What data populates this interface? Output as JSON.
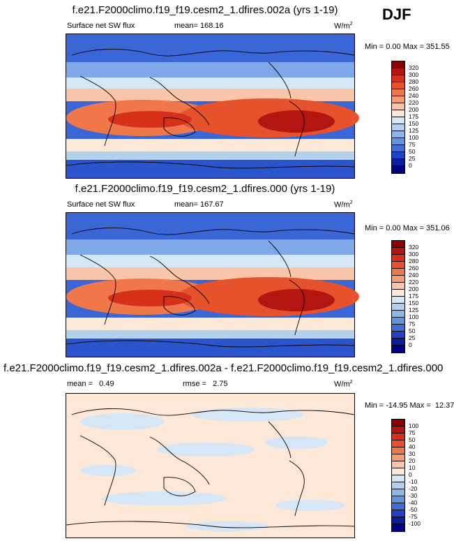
{
  "season": "DJF",
  "panels": [
    {
      "title": "f.e21.F2000climo.f19_f19.cesm2_1.dfires.002a (yrs 1-19)",
      "left_label": "Surface net SW flux",
      "center_label": "mean= 168.16",
      "units": "W/m",
      "units_sup": "2",
      "minmax": "Min =   0.00 Max = 351.55",
      "levels": [
        "320",
        "300",
        "280",
        "260",
        "240",
        "220",
        "200",
        "175",
        "150",
        "125",
        "100",
        "75",
        "50",
        "25",
        "0"
      ],
      "colors": [
        "#8b0000",
        "#b31610",
        "#d62f1a",
        "#e6522b",
        "#f0774a",
        "#f59c75",
        "#f9c5a8",
        "#fde8d8",
        "#d5e6f6",
        "#b3d1ef",
        "#8db6e6",
        "#6395da",
        "#3f6fd1",
        "#1f45c6",
        "#0a1fa0",
        "#000080"
      ],
      "map_type": "full"
    },
    {
      "title": "f.e21.F2000climo.f19_f19.cesm2_1.dfires.000 (yrs 1-19)",
      "left_label": "Surface net SW flux",
      "center_label": "mean= 167.67",
      "units": "W/m",
      "units_sup": "2",
      "minmax": "Min =   0.00 Max = 351.06",
      "levels": [
        "320",
        "300",
        "280",
        "260",
        "240",
        "220",
        "200",
        "175",
        "150",
        "125",
        "100",
        "75",
        "50",
        "25",
        "0"
      ],
      "colors": [
        "#8b0000",
        "#b31610",
        "#d62f1a",
        "#e6522b",
        "#f0774a",
        "#f59c75",
        "#f9c5a8",
        "#fde8d8",
        "#d5e6f6",
        "#b3d1ef",
        "#8db6e6",
        "#6395da",
        "#3f6fd1",
        "#1f45c6",
        "#0a1fa0",
        "#000080"
      ],
      "map_type": "full"
    },
    {
      "title": "f.e21.F2000climo.f19_f19.cesm2_1.dfires.002a - f.e21.F2000climo.f19_f19.cesm2_1.dfires.000",
      "left_label": "mean =   0.49",
      "center_label": "rmse =   2.75",
      "units": "W/m",
      "units_sup": "2",
      "minmax": "Min = -14.95 Max =  12.37",
      "levels": [
        "100",
        "75",
        "50",
        "40",
        "30",
        "20",
        "10",
        "0",
        "-10",
        "-20",
        "-30",
        "-40",
        "-50",
        "-75",
        "-100"
      ],
      "colors": [
        "#8b0000",
        "#b31610",
        "#d62f1a",
        "#e6522b",
        "#f0774a",
        "#f59c75",
        "#f9c5a8",
        "#fde8d8",
        "#d5e6f6",
        "#b3d1ef",
        "#8db6e6",
        "#6395da",
        "#3f6fd1",
        "#1f45c6",
        "#0a1fa0",
        "#000080"
      ],
      "map_type": "diff"
    }
  ]
}
